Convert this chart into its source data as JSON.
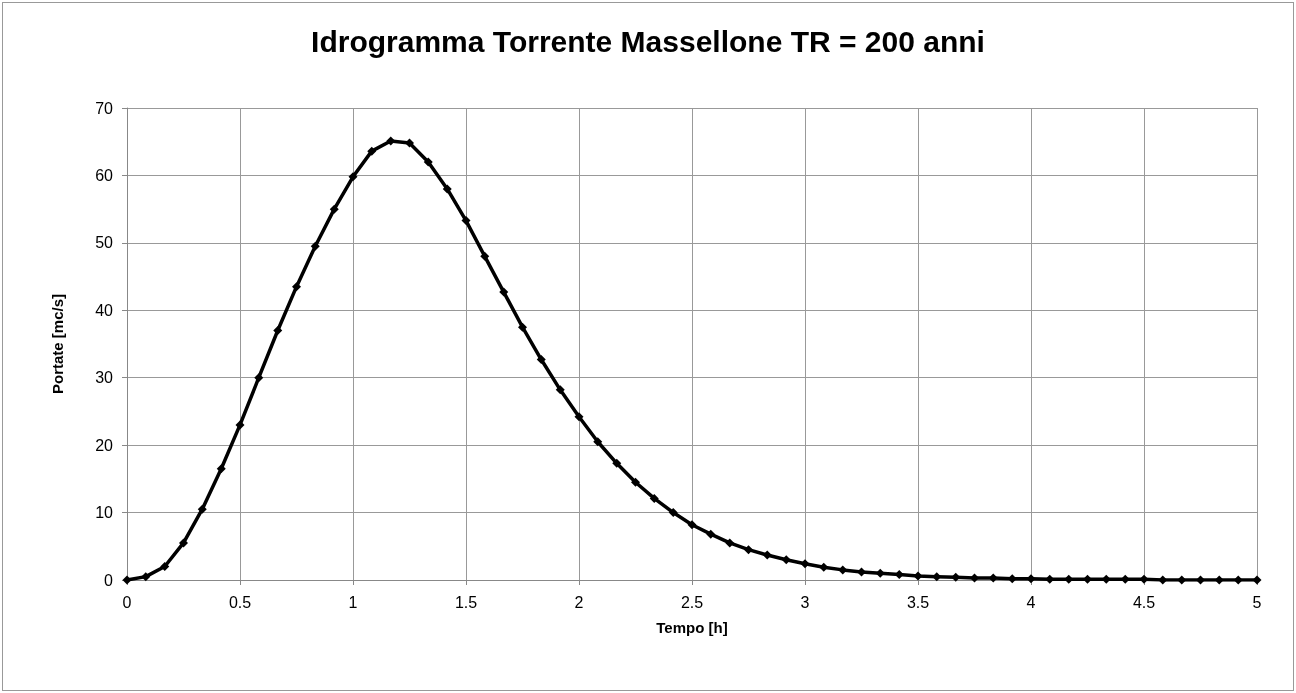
{
  "chart_data": {
    "type": "line",
    "title": "Idrogramma Torrente Massellone TR = 200 anni",
    "xlabel": "Tempo [h]",
    "ylabel": "Portate [mc/s]",
    "x": [
      0,
      0.083,
      0.167,
      0.25,
      0.333,
      0.417,
      0.5,
      0.583,
      0.667,
      0.75,
      0.833,
      0.917,
      1,
      1.083,
      1.167,
      1.25,
      1.333,
      1.417,
      1.5,
      1.583,
      1.667,
      1.75,
      1.833,
      1.917,
      2,
      2.083,
      2.167,
      2.25,
      2.333,
      2.417,
      2.5,
      2.583,
      2.667,
      2.75,
      2.833,
      2.917,
      3,
      3.083,
      3.167,
      3.25,
      3.333,
      3.417,
      3.5,
      3.583,
      3.667,
      3.75,
      3.833,
      3.917,
      4,
      4.083,
      4.167,
      4.25,
      4.333,
      4.417,
      4.5,
      4.583,
      4.667,
      4.75,
      4.833,
      4.917,
      5
    ],
    "series": [
      {
        "color": "#000000",
        "values": [
          0,
          0.5,
          2,
          5.5,
          10.5,
          16.5,
          23,
          30,
          37,
          43.5,
          49.5,
          55,
          59.8,
          63.6,
          65.1,
          64.8,
          62,
          58,
          53.3,
          48,
          42.7,
          37.5,
          32.7,
          28.2,
          24.2,
          20.5,
          17.3,
          14.5,
          12.1,
          10,
          8.2,
          6.8,
          5.5,
          4.5,
          3.7,
          3,
          2.4,
          1.9,
          1.5,
          1.2,
          1,
          0.8,
          0.6,
          0.5,
          0.4,
          0.3,
          0.3,
          0.2,
          0.2,
          0.1,
          0.1,
          0.1,
          0.1,
          0.1,
          0.1,
          0,
          0,
          0,
          0,
          0,
          0
        ]
      }
    ],
    "xlim": [
      0,
      5
    ],
    "xticks": [
      0,
      0.5,
      1,
      1.5,
      2,
      2.5,
      3,
      3.5,
      4,
      4.5,
      5
    ],
    "ylim": [
      0,
      70
    ],
    "yticks": [
      0,
      10,
      20,
      30,
      40,
      50,
      60,
      70
    ],
    "grid": true,
    "marker": "diamond",
    "line_style": "solid"
  }
}
